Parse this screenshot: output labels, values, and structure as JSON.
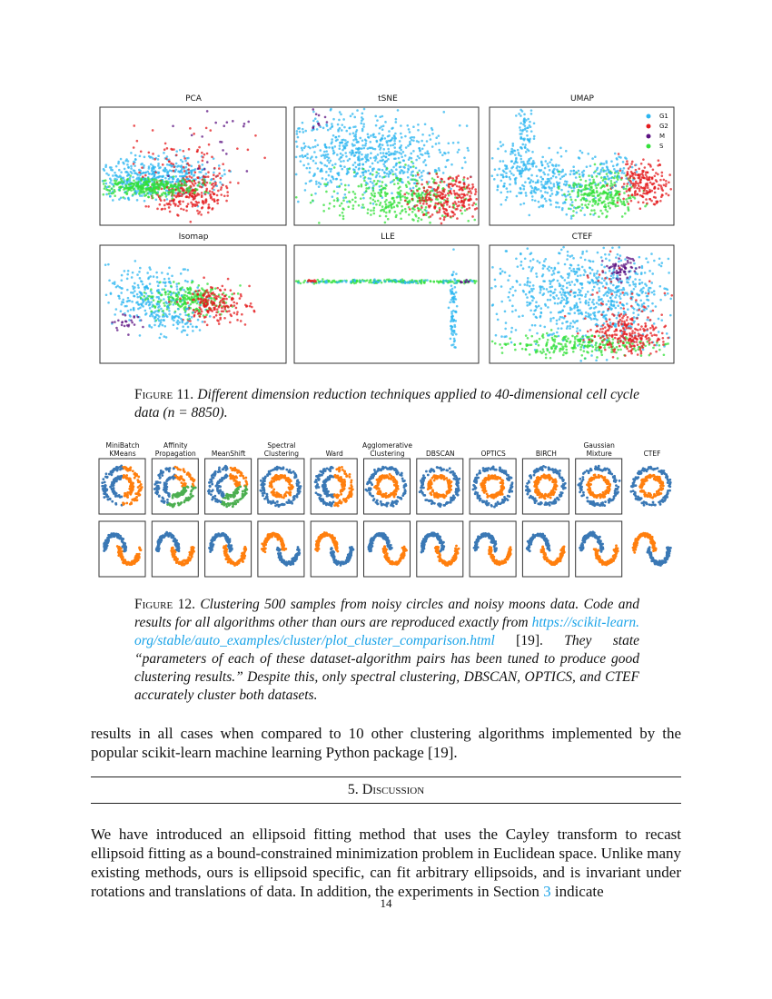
{
  "figure11": {
    "panels": [
      "PCA",
      "tSNE",
      "UMAP",
      "Isomap",
      "LLE",
      "CTEF"
    ],
    "legend": [
      "G1",
      "G2",
      "M",
      "S"
    ],
    "caption": {
      "label": "Figure 11.",
      "text": "Different dimension reduction techniques applied to 40-dimensional cell cycle data (n = 8850)."
    }
  },
  "figure12": {
    "methods": [
      "MiniBatch\nKMeans",
      "Affinity\nPropagation",
      "MeanShift",
      "Spectral\nClustering",
      "Ward",
      "Agglomerative\nClustering",
      "DBSCAN",
      "OPTICS",
      "BIRCH",
      "Gaussian\nMixture",
      "CTEF"
    ],
    "caption": {
      "label": "Figure 12.",
      "text_1": "Clustering 500 samples from noisy circles and noisy moons data. Code and results for all algorithms other than ours are reproduced exactly from",
      "link": "https://scikit-learn.org/stable/auto_examples/cluster/plot_cluster_comparison.html",
      "ref": "[19].",
      "text_2": "They state “parameters of each of these dataset-algorithm pairs has been tuned to produce good clustering results.” Despite this, only spectral clustering, DBSCAN, OPTICS, and CTEF accurately cluster both datasets."
    }
  },
  "paragraph_1": "results in all cases when compared to 10 other clustering algorithms implemented by the popular scikit-learn machine learning Python package [19].",
  "section": {
    "number": "5.",
    "title": "Discussion"
  },
  "paragraph_2": {
    "text_1": "We have introduced an ellipsoid fitting method that uses the Cayley transform to recast ellipsoid fitting as a bound-constrained minimization problem in Euclidean space. Unlike many existing methods, ours is ellipsoid specific, can fit arbitrary ellipsoids, and is invariant under rotations and translations of data. In addition, the experiments in Section",
    "link": "3",
    "text_2": "indicate"
  },
  "page_number": "14"
}
